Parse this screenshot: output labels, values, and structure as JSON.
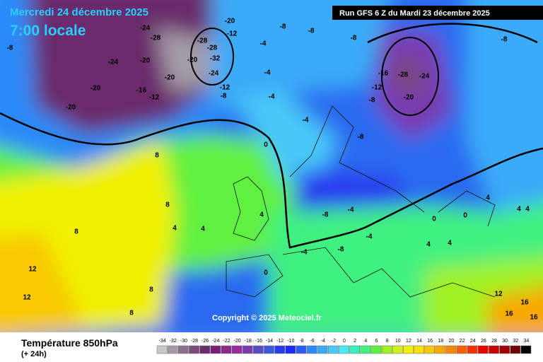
{
  "header": {
    "date": "Mercredi 24 décembre 2025",
    "time": "7:00 locale",
    "run": "Run GFS 6 Z du Mardi 23 décembre 2025"
  },
  "copyright": "Copyright © 2025 Meteociel.fr",
  "footer": {
    "title": "Température 850hPa",
    "subtitle": "(+ 24h)"
  },
  "legend": {
    "values": [
      -34,
      -32,
      -30,
      -28,
      -26,
      -24,
      -22,
      -20,
      -18,
      -16,
      -14,
      -12,
      -10,
      -8,
      -6,
      -4,
      -2,
      0,
      2,
      4,
      6,
      8,
      10,
      12,
      14,
      16,
      18,
      20,
      22,
      24,
      26,
      28,
      30,
      32,
      34
    ],
    "colors": [
      "#c8c8c8",
      "#a49ca8",
      "#8c7090",
      "#7a4c7c",
      "#6a2c6c",
      "#7a1c7a",
      "#8a2a8a",
      "#9a2aa0",
      "#7a3ab0",
      "#5a4ac8",
      "#3a5ae0",
      "#2a3af0",
      "#1a2af8",
      "#2a5af8",
      "#2a8af8",
      "#3aaaf8",
      "#4ac8f8",
      "#4ae8f0",
      "#3af0c0",
      "#40f080",
      "#60f040",
      "#a0f020",
      "#d0f020",
      "#f0f000",
      "#f8e000",
      "#f8c800",
      "#f8a800",
      "#f88800",
      "#f86000",
      "#f83000",
      "#e80000",
      "#c80000",
      "#a00000",
      "#700000",
      "#000000"
    ]
  },
  "map_labels": [
    "-24",
    "-28",
    "-20",
    "-8",
    "-24",
    "-20",
    "-20",
    "-16",
    "-12",
    "-20",
    "-28",
    "-32",
    "-28",
    "-20",
    "-24",
    "-12",
    "-8",
    "-20",
    "-12",
    "-8",
    "-8",
    "-4",
    "-4",
    "-8",
    "-8",
    "-8",
    "-4",
    "-4",
    "-16",
    "-28",
    "-24",
    "-12",
    "-20",
    "-8",
    "-8",
    "0",
    "8",
    "8",
    "8",
    "4",
    "4",
    "4",
    "12",
    "12",
    "8",
    "0",
    "-4",
    "-8",
    "-4",
    "-4",
    "4",
    "4",
    "4",
    "4",
    "0",
    "0",
    "4",
    "8",
    "12",
    "16",
    "16",
    "16"
  ]
}
